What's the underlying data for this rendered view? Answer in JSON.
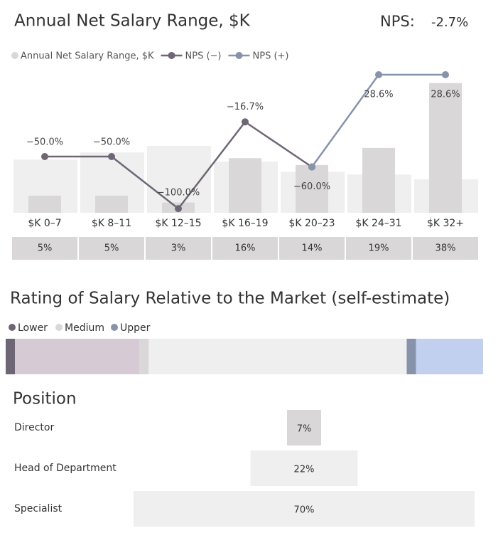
{
  "chart_data": [
    {
      "type": "combo",
      "title": "Annual Net Salary Range, $K",
      "nps_label": "NPS:",
      "nps_value": "-2.7%",
      "categories": [
        "$K 0–7",
        "$K 8–11",
        "$K 12–15",
        "$K 16–19",
        "$K 20–23",
        "$K 24–31",
        "$K 32+"
      ],
      "series": [
        {
          "type": "bar",
          "color": "#efefef",
          "values": [
            15.6,
            17.7,
            19.6,
            15,
            12,
            11.2,
            9.8
          ]
        },
        {
          "type": "bar",
          "name": "Annual Net Salary Range, $K",
          "color": "#d9d7d7",
          "values": [
            5,
            5,
            3,
            16,
            14,
            19,
            38
          ],
          "value_labels": [
            "5%",
            "5%",
            "3%",
            "16%",
            "14%",
            "19%",
            "38%"
          ]
        },
        {
          "type": "line",
          "axis": "y2",
          "name": "NPS (−)",
          "color": "#6e6675",
          "values": [
            -50,
            -50,
            -100,
            -16.7,
            -60,
            null,
            null
          ],
          "value_labels": [
            "−50.0%",
            "−50.0%",
            "−100.0%",
            "−16.7%",
            "−60.0%",
            null,
            null
          ]
        },
        {
          "type": "line",
          "axis": "y2",
          "name": "NPS (+)",
          "color": "#8793ab",
          "values": [
            null,
            null,
            null,
            null,
            -60,
            28.6,
            28.6
          ],
          "value_labels": [
            null,
            null,
            null,
            null,
            null,
            "28.6%",
            "28.6%"
          ]
        }
      ],
      "ylim": [
        0,
        41.5
      ],
      "y2lim": [
        -104,
        32
      ]
    },
    {
      "type": "stacked_bar",
      "title": "Rating of Salary Relative to the Market (self-estimate)",
      "xlim": [
        0,
        100
      ],
      "series": [
        {
          "name": "Lower",
          "color": "#6e6675",
          "fill_color": "#d6cbd5",
          "values": [
            28
          ]
        },
        {
          "name": "Medium",
          "color": "#d9d7d7",
          "fill_color": "#efefef",
          "values": [
            56
          ]
        },
        {
          "name": "Upper",
          "color": "#8793ab",
          "fill_color": "#c1d0ee",
          "values": [
            16
          ]
        }
      ]
    },
    {
      "type": "funnel",
      "title": "Position",
      "xlim": [
        0,
        70
      ],
      "categories": [
        "Director",
        "Head of Department",
        "Specialist"
      ],
      "values": [
        7,
        22,
        70
      ],
      "value_labels": [
        "7%",
        "22%",
        "70%"
      ],
      "colors": [
        "#d9d7d7",
        "#efefef",
        "#efefef"
      ]
    }
  ]
}
